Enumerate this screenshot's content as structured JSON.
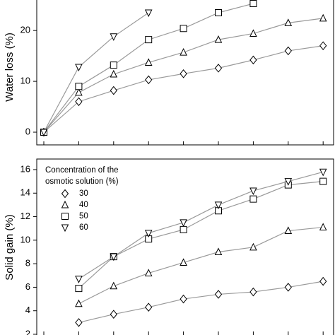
{
  "chart_data": [
    {
      "type": "line",
      "y_label": "Water loss (%)",
      "categories": [
        null,
        null,
        null,
        null,
        null,
        null,
        null,
        null,
        null
      ],
      "ylim": [
        -2.5,
        26
      ],
      "yticks": [
        0,
        10,
        20
      ],
      "series": [
        {
          "name": "30",
          "marker": "diamond",
          "color": "#000000",
          "values": [
            0,
            6.0,
            8.2,
            10.3,
            11.5,
            12.6,
            14.2,
            16.0,
            17.0
          ]
        },
        {
          "name": "40",
          "marker": "triangle-up",
          "color": "#000000",
          "values": [
            0,
            7.8,
            11.4,
            13.7,
            15.7,
            18.2,
            19.4,
            21.5,
            22.4
          ]
        },
        {
          "name": "50",
          "marker": "square",
          "color": "#000000",
          "values": [
            0,
            9.0,
            13.2,
            18.2,
            20.4,
            23.5,
            25.3,
            null,
            null
          ]
        },
        {
          "name": "60",
          "marker": "triangle-down",
          "color": "#000000",
          "values": [
            0,
            12.8,
            18.8,
            23.5,
            null,
            null,
            null,
            null,
            null
          ]
        }
      ]
    },
    {
      "type": "line",
      "y_label": "Solid gain (%)",
      "legend_title": [
        "Concentration of the",
        "osmotic solution (%)"
      ],
      "legend": "upper left",
      "categories": [
        null,
        null,
        null,
        null,
        null,
        null,
        null,
        null,
        null
      ],
      "ylim": [
        1.94,
        16.9
      ],
      "yticks": [
        2,
        4,
        6,
        8,
        10,
        12,
        14,
        16
      ],
      "series": [
        {
          "name": "30",
          "marker": "diamond",
          "color": "#000000",
          "values": [
            null,
            3.0,
            3.7,
            4.3,
            5.0,
            5.4,
            5.6,
            6.0,
            6.5
          ]
        },
        {
          "name": "40",
          "marker": "triangle-up",
          "color": "#000000",
          "values": [
            null,
            4.6,
            6.1,
            7.2,
            8.1,
            9.0,
            9.4,
            10.8,
            11.1
          ]
        },
        {
          "name": "50",
          "marker": "square",
          "color": "#000000",
          "values": [
            null,
            5.9,
            8.6,
            10.1,
            10.9,
            12.5,
            13.5,
            14.7,
            15.0
          ]
        },
        {
          "name": "60",
          "marker": "triangle-down",
          "color": "#000000",
          "values": [
            null,
            6.7,
            8.6,
            10.6,
            11.5,
            13.0,
            14.2,
            15.0,
            15.8
          ]
        }
      ]
    }
  ]
}
